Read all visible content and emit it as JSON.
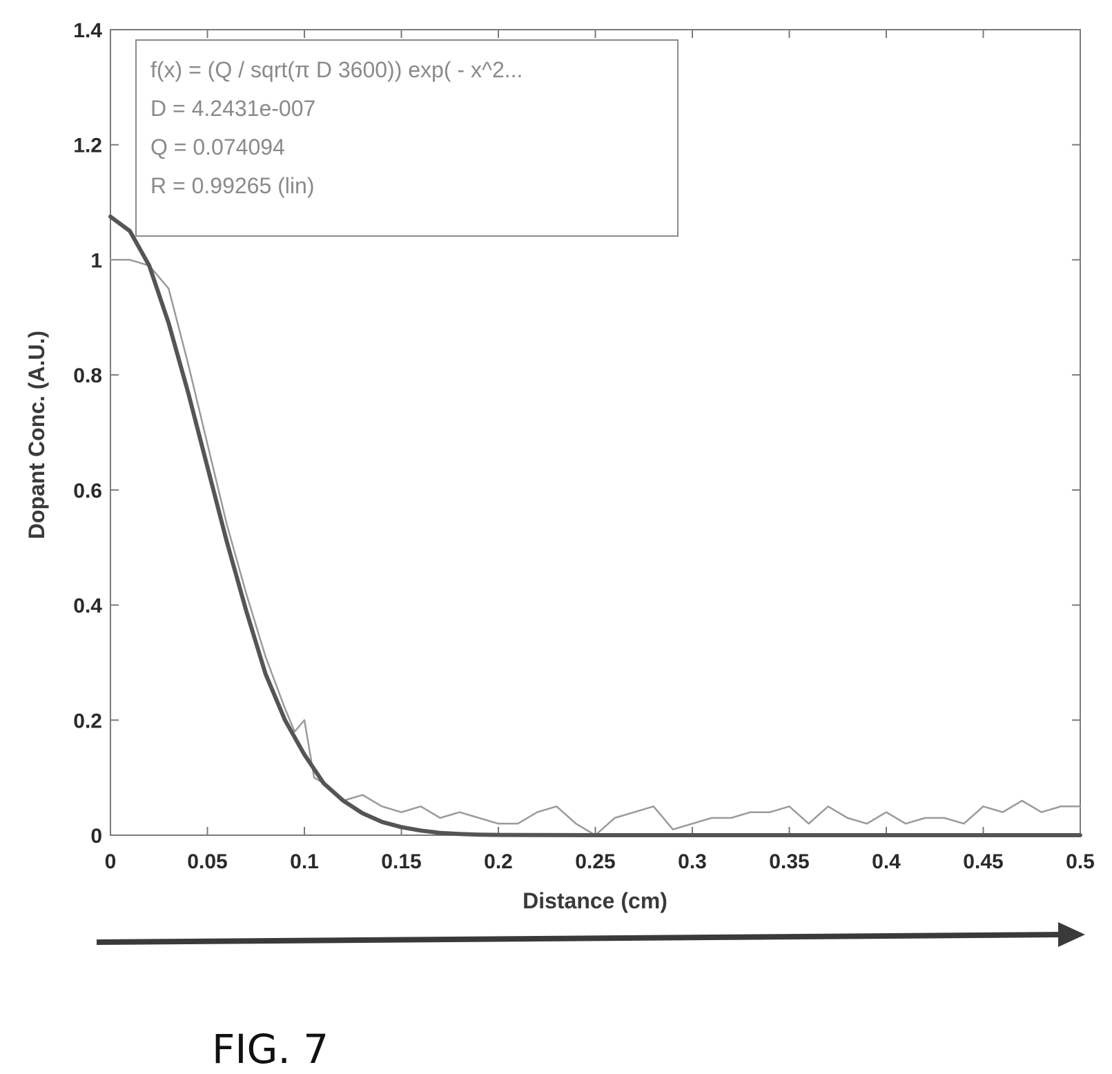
{
  "chart_data": {
    "type": "line",
    "xlabel": "Distance (cm)",
    "ylabel": "Dopant Conc. (A.U.)",
    "xlim": [
      0,
      0.5
    ],
    "ylim": [
      0,
      1.4
    ],
    "x_ticks": [
      "0",
      "0.05",
      "0.1",
      "0.15",
      "0.2",
      "0.25",
      "0.3",
      "0.35",
      "0.4",
      "0.45",
      "0.5"
    ],
    "y_ticks": [
      "0",
      "0.2",
      "0.4",
      "0.6",
      "0.8",
      "1",
      "1.2",
      "1.4"
    ],
    "grid": false,
    "legend_position": "top-left",
    "fit_box": [
      "f(x) = (Q / sqrt(π D 3600)) exp( - x^2...",
      "D = 4.2431e-007",
      "Q = 0.074094",
      "R = 0.99265  (lin)"
    ],
    "series": [
      {
        "role": "measured",
        "color": "#9a9a9a",
        "x": [
          0,
          0.01,
          0.02,
          0.03,
          0.04,
          0.05,
          0.06,
          0.07,
          0.08,
          0.09,
          0.095,
          0.1,
          0.105,
          0.11,
          0.12,
          0.13,
          0.14,
          0.15,
          0.16,
          0.17,
          0.18,
          0.19,
          0.2,
          0.21,
          0.22,
          0.23,
          0.24,
          0.25,
          0.26,
          0.27,
          0.28,
          0.29,
          0.3,
          0.31,
          0.32,
          0.33,
          0.34,
          0.35,
          0.36,
          0.37,
          0.38,
          0.39,
          0.4,
          0.41,
          0.42,
          0.43,
          0.44,
          0.45,
          0.46,
          0.47,
          0.48,
          0.49,
          0.5
        ],
        "y": [
          1.0,
          1.0,
          0.99,
          0.95,
          0.82,
          0.68,
          0.54,
          0.42,
          0.31,
          0.22,
          0.18,
          0.2,
          0.1,
          0.09,
          0.06,
          0.07,
          0.05,
          0.04,
          0.05,
          0.03,
          0.04,
          0.03,
          0.02,
          0.02,
          0.04,
          0.05,
          0.02,
          0.0,
          0.03,
          0.04,
          0.05,
          0.01,
          0.02,
          0.03,
          0.03,
          0.04,
          0.04,
          0.05,
          0.02,
          0.05,
          0.03,
          0.02,
          0.04,
          0.02,
          0.03,
          0.03,
          0.02,
          0.05,
          0.04,
          0.06,
          0.04,
          0.05,
          0.05
        ]
      },
      {
        "role": "fit",
        "color": "#555555",
        "x": [
          0,
          0.01,
          0.02,
          0.03,
          0.04,
          0.05,
          0.06,
          0.07,
          0.08,
          0.09,
          0.1,
          0.11,
          0.12,
          0.13,
          0.14,
          0.15,
          0.16,
          0.17,
          0.18,
          0.19,
          0.2,
          0.25,
          0.3,
          0.35,
          0.4,
          0.45,
          0.5
        ],
        "y": [
          1.075,
          1.05,
          0.99,
          0.89,
          0.77,
          0.64,
          0.51,
          0.39,
          0.28,
          0.2,
          0.14,
          0.09,
          0.06,
          0.038,
          0.023,
          0.014,
          0.008,
          0.004,
          0.002,
          0.001,
          0.0005,
          0.0,
          0.0,
          0.0,
          0.0,
          0.0,
          0.0
        ]
      }
    ]
  },
  "arrow": {
    "color": "#3a3a3a"
  },
  "caption": "FIG. 7"
}
